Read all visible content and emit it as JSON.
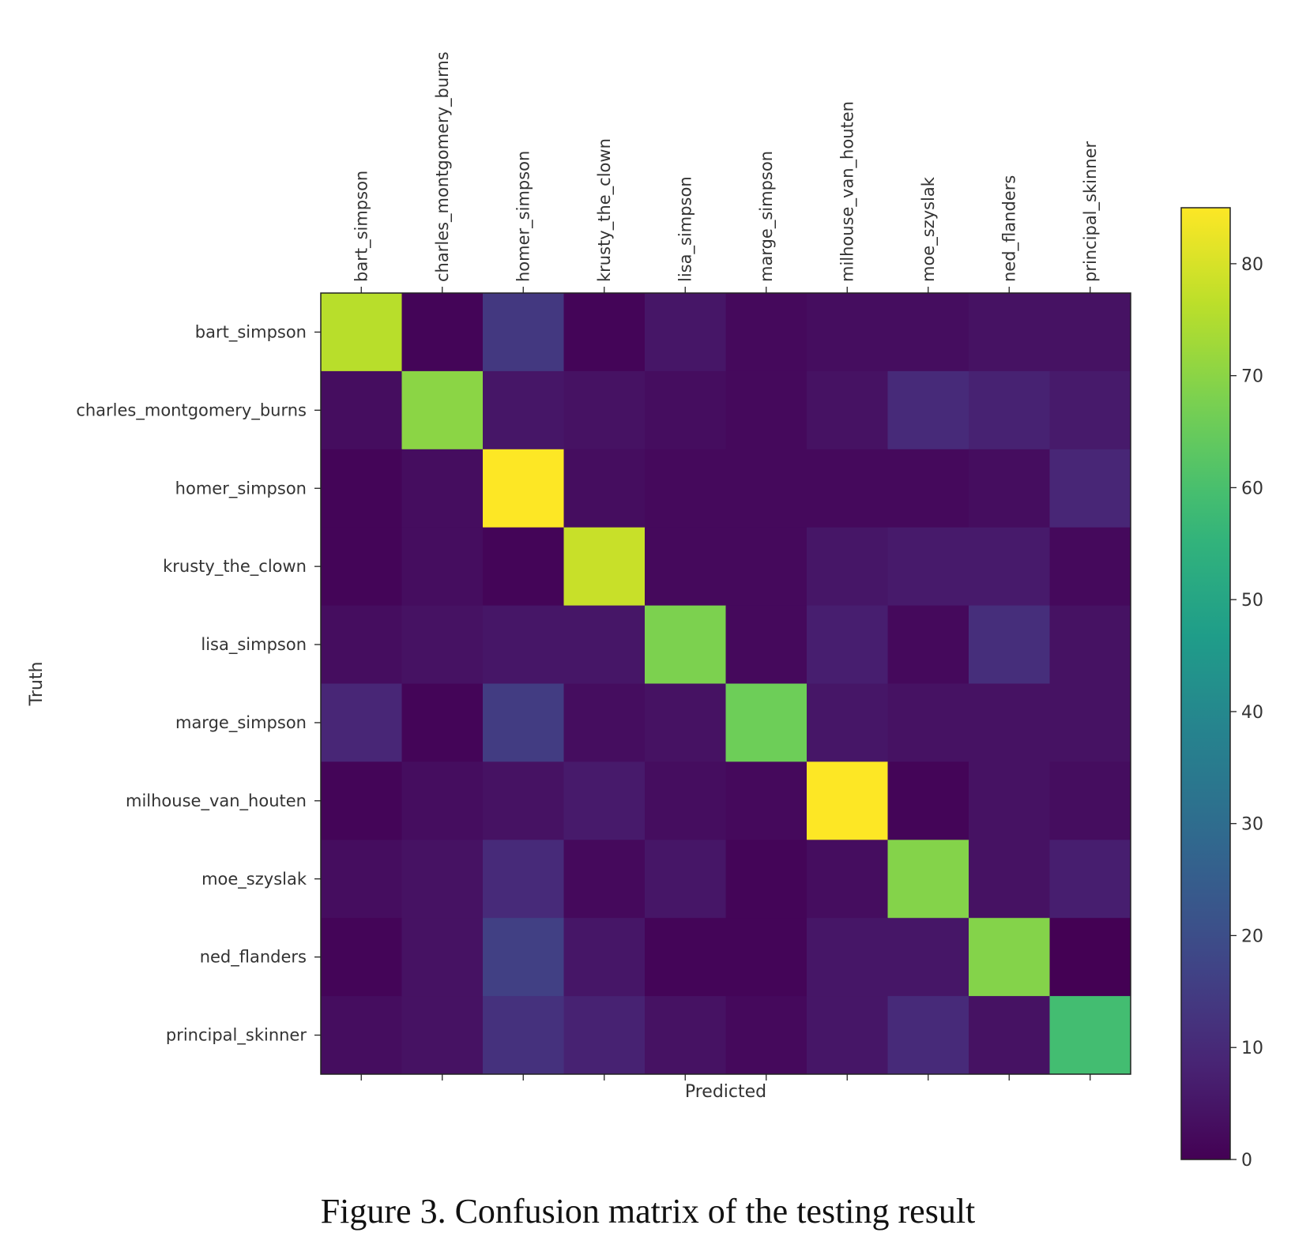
{
  "caption": "Figure 3. Confusion matrix of the testing result",
  "chart_data": {
    "type": "heatmap",
    "colormap": "viridis",
    "xlabel": "Predicted",
    "ylabel": "Truth",
    "x_categories": [
      "bart_simpson",
      "charles_montgomery_burns",
      "homer_simpson",
      "krusty_the_clown",
      "lisa_simpson",
      "marge_simpson",
      "milhouse_van_houten",
      "moe_szyslak",
      "ned_flanders",
      "principal_skinner"
    ],
    "y_categories": [
      "bart_simpson",
      "charles_montgomery_burns",
      "homer_simpson",
      "krusty_the_clown",
      "lisa_simpson",
      "marge_simpson",
      "milhouse_van_houten",
      "moe_szyslak",
      "ned_flanders",
      "principal_skinner"
    ],
    "values": [
      [
        76,
        1,
        14,
        1,
        5,
        2,
        3,
        3,
        4,
        4
      ],
      [
        3,
        70,
        5,
        4,
        3,
        2,
        4,
        10,
        8,
        6
      ],
      [
        1,
        3,
        85,
        3,
        2,
        2,
        2,
        2,
        3,
        9
      ],
      [
        1,
        3,
        1,
        78,
        2,
        2,
        5,
        6,
        6,
        2
      ],
      [
        3,
        4,
        5,
        5,
        68,
        2,
        7,
        2,
        11,
        4
      ],
      [
        9,
        1,
        15,
        3,
        4,
        66,
        5,
        4,
        4,
        4
      ],
      [
        1,
        3,
        4,
        6,
        3,
        2,
        85,
        1,
        4,
        3
      ],
      [
        3,
        4,
        10,
        2,
        5,
        1,
        3,
        69,
        4,
        7
      ],
      [
        1,
        4,
        16,
        5,
        1,
        1,
        5,
        5,
        69,
        0
      ],
      [
        3,
        4,
        12,
        8,
        4,
        2,
        5,
        10,
        4,
        59
      ]
    ],
    "colorbar": {
      "min": 0,
      "max": 85,
      "ticks": [
        0,
        10,
        20,
        30,
        40,
        50,
        60,
        70,
        80
      ]
    },
    "grid": false,
    "x_tick_position": "top"
  }
}
